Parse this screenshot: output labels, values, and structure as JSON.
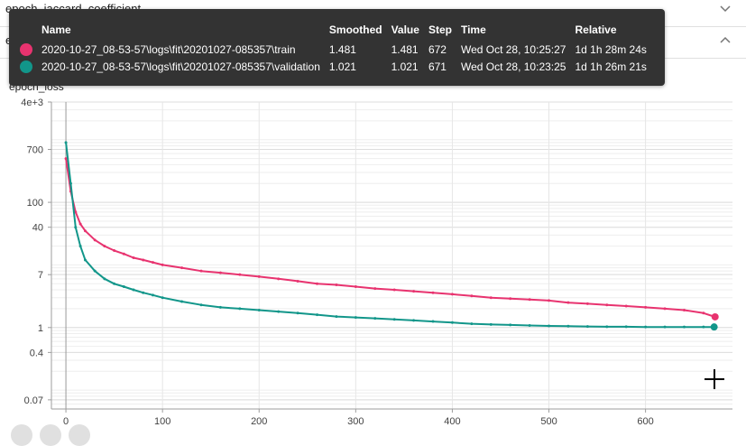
{
  "sections": [
    {
      "title": "epoch_jaccard_coefficient",
      "expanded": false
    },
    {
      "title": "epoch_loss",
      "expanded": true
    }
  ],
  "chart_title": "epoch_loss",
  "tooltip": {
    "headers": [
      "Name",
      "Smoothed",
      "Value",
      "Step",
      "Time",
      "Relative"
    ],
    "rows": [
      {
        "color": "#e8336f",
        "name": "2020-10-27_08-53-57\\logs\\fit\\20201027-085357\\train",
        "smoothed": "1.481",
        "value": "1.481",
        "step": "672",
        "time": "Wed Oct 28, 10:25:27",
        "relative": "1d 1h 28m 24s"
      },
      {
        "color": "#12968a",
        "name": "2020-10-27_08-53-57\\logs\\fit\\20201027-085357\\validation",
        "smoothed": "1.021",
        "value": "1.021",
        "step": "671",
        "time": "Wed Oct 28, 10:23:25",
        "relative": "1d 1h 26m 21s"
      }
    ]
  },
  "chart_data": {
    "type": "line",
    "title": "epoch_loss",
    "xlabel": "",
    "ylabel": "",
    "x_ticks": [
      0,
      100,
      200,
      300,
      400,
      500,
      600
    ],
    "y_ticks": [
      0.07,
      0.4,
      1,
      7,
      40,
      100,
      700,
      4000
    ],
    "y_tick_labels": [
      "0.07",
      "0.4",
      "1",
      "7",
      "40",
      "100",
      "700",
      "4e+3"
    ],
    "xlim": [
      -15,
      690
    ],
    "ylim": [
      0.05,
      4000
    ],
    "y_scale": "log",
    "grid": true,
    "series": [
      {
        "name": "2020-10-27_08-53-57\\logs\\fit\\20201027-085357\\train",
        "color": "#e8336f",
        "x": [
          0,
          5,
          10,
          15,
          20,
          30,
          40,
          50,
          60,
          70,
          80,
          90,
          100,
          120,
          140,
          160,
          180,
          200,
          220,
          240,
          260,
          280,
          300,
          320,
          340,
          360,
          380,
          400,
          420,
          440,
          460,
          480,
          500,
          520,
          540,
          560,
          580,
          600,
          620,
          640,
          660,
          672
        ],
        "y": [
          500,
          150,
          70,
          45,
          35,
          25,
          20,
          17,
          15,
          13,
          12,
          11,
          10,
          9,
          8,
          7.5,
          7,
          6.5,
          6,
          5.5,
          5,
          4.8,
          4.5,
          4.2,
          4,
          3.8,
          3.6,
          3.4,
          3.2,
          3,
          2.9,
          2.8,
          2.7,
          2.5,
          2.4,
          2.3,
          2.2,
          2.1,
          2,
          1.9,
          1.7,
          1.481
        ]
      },
      {
        "name": "2020-10-27_08-53-57\\logs\\fit\\20201027-085357\\validation",
        "color": "#12968a",
        "x": [
          0,
          5,
          10,
          15,
          20,
          30,
          40,
          50,
          60,
          70,
          80,
          90,
          100,
          120,
          140,
          160,
          180,
          200,
          220,
          240,
          260,
          280,
          300,
          320,
          340,
          360,
          380,
          400,
          420,
          440,
          460,
          480,
          500,
          520,
          540,
          560,
          580,
          600,
          620,
          640,
          660,
          671
        ],
        "y": [
          900,
          200,
          40,
          20,
          12,
          8,
          6,
          5,
          4.5,
          4,
          3.6,
          3.3,
          3,
          2.6,
          2.3,
          2.1,
          2,
          1.9,
          1.8,
          1.7,
          1.6,
          1.5,
          1.45,
          1.4,
          1.35,
          1.3,
          1.25,
          1.2,
          1.15,
          1.12,
          1.1,
          1.08,
          1.06,
          1.05,
          1.04,
          1.03,
          1.03,
          1.02,
          1.02,
          1.02,
          1.02,
          1.021
        ]
      }
    ]
  }
}
